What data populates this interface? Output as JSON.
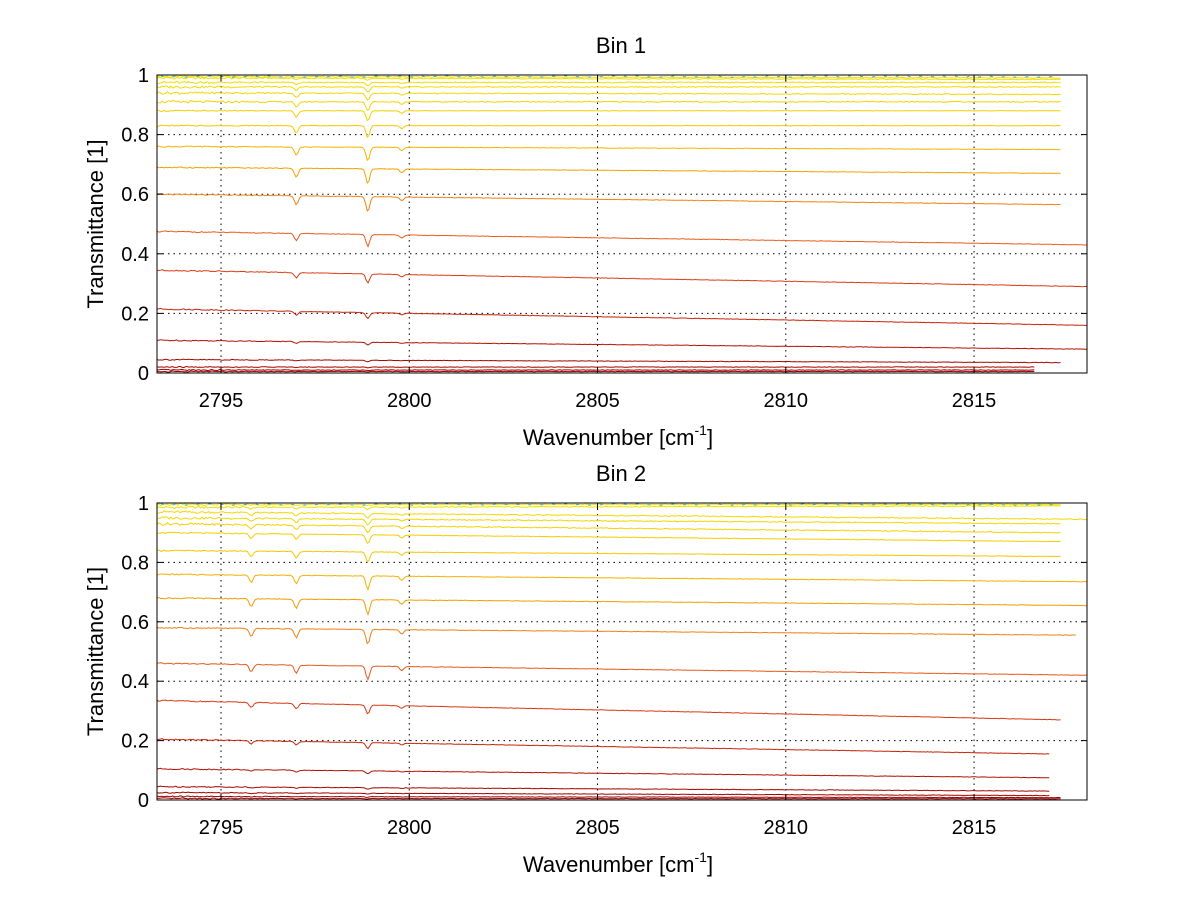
{
  "colors": {
    "background": "#ffffff",
    "axes": "#000000",
    "trace_colormap": [
      "#9b0000",
      "#c8280a",
      "#e0451a",
      "#f07020",
      "#f4a000",
      "#f8c800",
      "#f0e000",
      "#2ab0d8"
    ]
  },
  "chart_data": [
    {
      "type": "line",
      "title": "Bin 1",
      "xlabel": "Wavenumber [cm",
      "xlabel_sup": "-1",
      "xlabel_end": "]",
      "ylabel": "Transmittance [1]",
      "xlim": [
        2793.3,
        2818.0
      ],
      "ylim": [
        0,
        1
      ],
      "xticks": [
        "2795",
        "2800",
        "2805",
        "2810",
        "2815"
      ],
      "xtick_values": [
        2795,
        2800,
        2805,
        2810,
        2815
      ],
      "yticks": [
        "0",
        "0.2",
        "0.4",
        "0.6",
        "0.8",
        "1"
      ],
      "ytick_values": [
        0,
        0.2,
        0.4,
        0.6,
        0.8,
        1
      ],
      "grid": true,
      "dips": [
        {
          "x": 2797.0,
          "weight": 0.6
        },
        {
          "x": 2798.9,
          "weight": 1.0
        },
        {
          "x": 2799.8,
          "weight": 0.25
        }
      ],
      "series": [
        {
          "start": 0.995,
          "end": 0.99,
          "x_end": 2817.3,
          "depth": 0.004
        },
        {
          "start": 0.99,
          "end": 0.985,
          "x_end": 2817.3,
          "depth": 0.006
        },
        {
          "start": 0.975,
          "end": 0.975,
          "x_end": 2817.3,
          "depth": 0.012
        },
        {
          "start": 0.96,
          "end": 0.96,
          "x_end": 2817.3,
          "depth": 0.018
        },
        {
          "start": 0.94,
          "end": 0.935,
          "x_end": 2817.3,
          "depth": 0.025
        },
        {
          "start": 0.91,
          "end": 0.91,
          "x_end": 2817.3,
          "depth": 0.03
        },
        {
          "start": 0.88,
          "end": 0.88,
          "x_end": 2817.3,
          "depth": 0.035
        },
        {
          "start": 0.83,
          "end": 0.83,
          "x_end": 2817.3,
          "depth": 0.04
        },
        {
          "start": 0.76,
          "end": 0.75,
          "x_end": 2817.3,
          "depth": 0.045
        },
        {
          "start": 0.69,
          "end": 0.67,
          "x_end": 2817.3,
          "depth": 0.05
        },
        {
          "start": 0.6,
          "end": 0.565,
          "x_end": 2817.3,
          "depth": 0.05
        },
        {
          "start": 0.475,
          "end": 0.43,
          "x_end": 2818.0,
          "depth": 0.04
        },
        {
          "start": 0.345,
          "end": 0.29,
          "x_end": 2818.0,
          "depth": 0.03
        },
        {
          "start": 0.215,
          "end": 0.16,
          "x_end": 2818.0,
          "depth": 0.02
        },
        {
          "start": 0.11,
          "end": 0.08,
          "x_end": 2818.0,
          "depth": 0.01
        },
        {
          "start": 0.045,
          "end": 0.035,
          "x_end": 2817.3,
          "depth": 0.005
        },
        {
          "start": 0.02,
          "end": 0.02,
          "x_end": 2816.6,
          "depth": 0.003
        },
        {
          "start": 0.01,
          "end": 0.01,
          "x_end": 2816.6,
          "depth": 0.002
        },
        {
          "start": 0.005,
          "end": 0.005,
          "x_end": 2816.6,
          "depth": 0.001
        }
      ]
    },
    {
      "type": "line",
      "title": "Bin 2",
      "xlabel": "Wavenumber [cm",
      "xlabel_sup": "-1",
      "xlabel_end": "]",
      "ylabel": "Transmittance [1]",
      "xlim": [
        2793.3,
        2818.0
      ],
      "ylim": [
        0,
        1
      ],
      "xticks": [
        "2795",
        "2800",
        "2805",
        "2810",
        "2815"
      ],
      "xtick_values": [
        2795,
        2800,
        2805,
        2810,
        2815
      ],
      "yticks": [
        "0",
        "0.2",
        "0.4",
        "0.6",
        "0.8",
        "1"
      ],
      "ytick_values": [
        0,
        0.2,
        0.4,
        0.6,
        0.8,
        1
      ],
      "grid": true,
      "dips": [
        {
          "x": 2795.8,
          "weight": 0.55
        },
        {
          "x": 2797.0,
          "weight": 0.6
        },
        {
          "x": 2798.9,
          "weight": 1.0
        },
        {
          "x": 2799.8,
          "weight": 0.3
        }
      ],
      "series": [
        {
          "start": 0.995,
          "end": 0.995,
          "x_end": 2817.3,
          "depth": 0.004
        },
        {
          "start": 0.985,
          "end": 0.99,
          "x_end": 2817.3,
          "depth": 0.008
        },
        {
          "start": 0.97,
          "end": 0.945,
          "x_end": 2818.0,
          "depth": 0.015
        },
        {
          "start": 0.95,
          "end": 0.93,
          "x_end": 2817.3,
          "depth": 0.02
        },
        {
          "start": 0.93,
          "end": 0.9,
          "x_end": 2817.3,
          "depth": 0.025
        },
        {
          "start": 0.9,
          "end": 0.87,
          "x_end": 2817.3,
          "depth": 0.03
        },
        {
          "start": 0.84,
          "end": 0.82,
          "x_end": 2817.3,
          "depth": 0.035
        },
        {
          "start": 0.76,
          "end": 0.735,
          "x_end": 2818.0,
          "depth": 0.045
        },
        {
          "start": 0.68,
          "end": 0.655,
          "x_end": 2818.0,
          "depth": 0.05
        },
        {
          "start": 0.58,
          "end": 0.555,
          "x_end": 2817.7,
          "depth": 0.05
        },
        {
          "start": 0.46,
          "end": 0.42,
          "x_end": 2818.0,
          "depth": 0.045
        },
        {
          "start": 0.335,
          "end": 0.27,
          "x_end": 2817.3,
          "depth": 0.03
        },
        {
          "start": 0.205,
          "end": 0.155,
          "x_end": 2817.0,
          "depth": 0.02
        },
        {
          "start": 0.105,
          "end": 0.075,
          "x_end": 2817.0,
          "depth": 0.01
        },
        {
          "start": 0.045,
          "end": 0.03,
          "x_end": 2817.0,
          "depth": 0.005
        },
        {
          "start": 0.025,
          "end": 0.015,
          "x_end": 2817.0,
          "depth": 0.003
        },
        {
          "start": 0.012,
          "end": 0.008,
          "x_end": 2817.3,
          "depth": 0.002
        },
        {
          "start": 0.005,
          "end": 0.004,
          "x_end": 2817.3,
          "depth": 0.001
        }
      ]
    }
  ]
}
